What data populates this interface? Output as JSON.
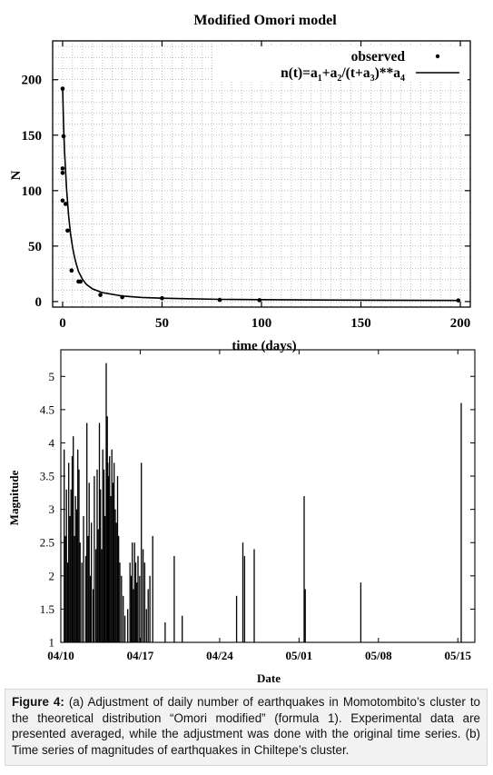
{
  "caption": {
    "label": "Figure 4:",
    "text": "(a) Adjustment of daily number of earthquakes in Momotombito’s cluster to the theoretical distribution “Omori modified” (formula 1). Experimental data are presented averaged, while the adjustment was done with the original time series. (b) Time series of magnitudes of earthquakes in Chiltepe’s cluster."
  },
  "chart_data": [
    {
      "type": "scatter",
      "title": "Modified Omori model",
      "xlabel": "time (days)",
      "ylabel": "N",
      "xlim": [
        -5,
        205
      ],
      "ylim": [
        -5,
        235
      ],
      "x_ticks": [
        0,
        50,
        100,
        150,
        200
      ],
      "y_ticks": [
        0,
        50,
        100,
        150,
        200
      ],
      "grid": true,
      "legend_position": "top-right",
      "series": [
        {
          "name": "observed",
          "kind": "points",
          "points": [
            [
              0,
              192
            ],
            [
              0.5,
              149
            ],
            [
              0,
              120
            ],
            [
              0,
              116
            ],
            [
              0,
              91
            ],
            [
              1.5,
              88
            ],
            [
              2.5,
              64
            ],
            [
              4.5,
              28
            ],
            [
              8,
              18
            ],
            [
              9,
              18
            ],
            [
              19,
              6
            ],
            [
              30,
              4
            ],
            [
              50,
              3
            ],
            [
              79,
              1.5
            ],
            [
              99,
              1.2
            ],
            [
              199,
              1
            ]
          ]
        },
        {
          "name": "n(t)=a1+a2/(t+a3)**a4",
          "kind": "curve",
          "points": [
            [
              0,
              192
            ],
            [
              0.5,
              160
            ],
            [
              1,
              135
            ],
            [
              2,
              102
            ],
            [
              3,
              78
            ],
            [
              4,
              61
            ],
            [
              5,
              49
            ],
            [
              6,
              40
            ],
            [
              7,
              33
            ],
            [
              8,
              27
            ],
            [
              10,
              20
            ],
            [
              12,
              15.5
            ],
            [
              15,
              11.5
            ],
            [
              20,
              8
            ],
            [
              30,
              5
            ],
            [
              40,
              3.7
            ],
            [
              50,
              3
            ],
            [
              60,
              2.6
            ],
            [
              80,
              2
            ],
            [
              100,
              1.7
            ],
            [
              130,
              1.4
            ],
            [
              160,
              1.2
            ],
            [
              200,
              1
            ]
          ]
        }
      ]
    },
    {
      "type": "bar",
      "xlabel": "Date",
      "ylabel": "Magnitude",
      "ylim": [
        1,
        5.4
      ],
      "xlim_days": [
        0,
        36.5
      ],
      "y_ticks": [
        "1",
        "1.5",
        "2",
        "2.5",
        "3",
        "3.5",
        "4",
        "4.5",
        "5"
      ],
      "x_ticks": [
        {
          "day": 0,
          "label": "04/10"
        },
        {
          "day": 7,
          "label": "04/17"
        },
        {
          "day": 14,
          "label": "04/24"
        },
        {
          "day": 21,
          "label": "05/01"
        },
        {
          "day": 28,
          "label": "05/08"
        },
        {
          "day": 35,
          "label": "05/15"
        }
      ],
      "grid": false,
      "x_unit": "days since 04/10",
      "bars": [
        {
          "day": 0.3,
          "magnitude": 3.9
        },
        {
          "day": 0.4,
          "magnitude": 2.6
        },
        {
          "day": 0.5,
          "magnitude": 3.3
        },
        {
          "day": 0.6,
          "magnitude": 2.2
        },
        {
          "day": 0.7,
          "magnitude": 3.7
        },
        {
          "day": 0.8,
          "magnitude": 2.9
        },
        {
          "day": 0.9,
          "magnitude": 3.3
        },
        {
          "day": 1.0,
          "magnitude": 3.8
        },
        {
          "day": 1.1,
          "magnitude": 4.1
        },
        {
          "day": 1.2,
          "magnitude": 2.6
        },
        {
          "day": 1.3,
          "magnitude": 3.2
        },
        {
          "day": 1.4,
          "magnitude": 3.0
        },
        {
          "day": 1.5,
          "magnitude": 3.9
        },
        {
          "day": 1.6,
          "magnitude": 3.6
        },
        {
          "day": 1.7,
          "magnitude": 2.5
        },
        {
          "day": 1.85,
          "magnitude": 2.2
        },
        {
          "day": 2.0,
          "magnitude": 2.9
        },
        {
          "day": 2.2,
          "magnitude": 2.3
        },
        {
          "day": 2.3,
          "magnitude": 4.3
        },
        {
          "day": 2.4,
          "magnitude": 2.6
        },
        {
          "day": 2.5,
          "magnitude": 3.4
        },
        {
          "day": 2.6,
          "magnitude": 2.0
        },
        {
          "day": 2.7,
          "magnitude": 2.8
        },
        {
          "day": 2.85,
          "magnitude": 1.8
        },
        {
          "day": 2.95,
          "magnitude": 3.5
        },
        {
          "day": 3.1,
          "magnitude": 2.4
        },
        {
          "day": 3.2,
          "magnitude": 3.6
        },
        {
          "day": 3.3,
          "magnitude": 2.7
        },
        {
          "day": 3.4,
          "magnitude": 4.3
        },
        {
          "day": 3.5,
          "magnitude": 3.3
        },
        {
          "day": 3.6,
          "magnitude": 2.4
        },
        {
          "day": 3.7,
          "magnitude": 3.9
        },
        {
          "day": 3.8,
          "magnitude": 3.6
        },
        {
          "day": 3.9,
          "magnitude": 2.9
        },
        {
          "day": 4.0,
          "magnitude": 5.2
        },
        {
          "day": 4.1,
          "magnitude": 4.4
        },
        {
          "day": 4.15,
          "magnitude": 3.7
        },
        {
          "day": 4.2,
          "magnitude": 3.5
        },
        {
          "day": 4.3,
          "magnitude": 3.8
        },
        {
          "day": 4.4,
          "magnitude": 3.2
        },
        {
          "day": 4.5,
          "magnitude": 3.9
        },
        {
          "day": 4.6,
          "magnitude": 3.4
        },
        {
          "day": 4.7,
          "magnitude": 3.7
        },
        {
          "day": 4.8,
          "magnitude": 3.0
        },
        {
          "day": 4.9,
          "magnitude": 2.8
        },
        {
          "day": 5.0,
          "magnitude": 3.5
        },
        {
          "day": 5.1,
          "magnitude": 2.6
        },
        {
          "day": 5.2,
          "magnitude": 2.2
        },
        {
          "day": 5.35,
          "magnitude": 2.0
        },
        {
          "day": 5.5,
          "magnitude": 1.7
        },
        {
          "day": 5.65,
          "magnitude": 1.4
        },
        {
          "day": 5.9,
          "magnitude": 1.5
        },
        {
          "day": 6.1,
          "magnitude": 2.2
        },
        {
          "day": 6.2,
          "magnitude": 2.0
        },
        {
          "day": 6.3,
          "magnitude": 2.5
        },
        {
          "day": 6.4,
          "magnitude": 1.8
        },
        {
          "day": 6.5,
          "magnitude": 2.5
        },
        {
          "day": 6.6,
          "magnitude": 2.2
        },
        {
          "day": 6.7,
          "magnitude": 1.9
        },
        {
          "day": 6.8,
          "magnitude": 2.3
        },
        {
          "day": 6.95,
          "magnitude": 2.0
        },
        {
          "day": 7.1,
          "magnitude": 3.7
        },
        {
          "day": 7.25,
          "magnitude": 2.4
        },
        {
          "day": 7.4,
          "magnitude": 2.2
        },
        {
          "day": 7.55,
          "magnitude": 1.5
        },
        {
          "day": 7.7,
          "magnitude": 1.8
        },
        {
          "day": 7.85,
          "magnitude": 2.0
        },
        {
          "day": 8.1,
          "magnitude": 2.6
        },
        {
          "day": 9.2,
          "magnitude": 1.3
        },
        {
          "day": 10.0,
          "magnitude": 2.3
        },
        {
          "day": 10.7,
          "magnitude": 1.4
        },
        {
          "day": 15.5,
          "magnitude": 1.7
        },
        {
          "day": 16.05,
          "magnitude": 2.5
        },
        {
          "day": 16.2,
          "magnitude": 2.3
        },
        {
          "day": 17.05,
          "magnitude": 2.4
        },
        {
          "day": 21.45,
          "magnitude": 3.2
        },
        {
          "day": 21.55,
          "magnitude": 1.8
        },
        {
          "day": 26.45,
          "magnitude": 1.9
        },
        {
          "day": 35.3,
          "magnitude": 4.6
        }
      ]
    }
  ]
}
